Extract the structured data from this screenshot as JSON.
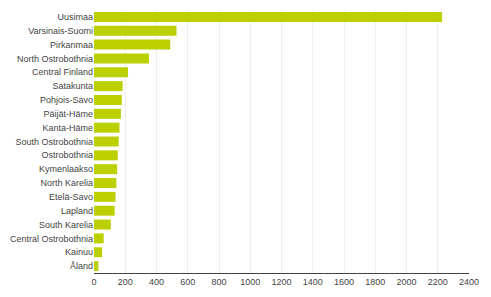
{
  "chart_data": {
    "type": "bar",
    "orientation": "horizontal",
    "categories": [
      "Åland",
      "Kainuu",
      "Central Ostrobothnia",
      "South Karelia",
      "Lapland",
      "Etelä-Savo",
      "North Karelia",
      "Kymenlaakso",
      "Ostrobothnia",
      "South Ostrobothnia",
      "Kanta-Häme",
      "Päijät-Häme",
      "Pohjois-Savo",
      "Satakunta",
      "Central Finland",
      "North Ostrobothnia",
      "Pirkanmaa",
      "Varsinais-Suomi",
      "Uusimaa"
    ],
    "values": [
      28,
      52,
      62,
      108,
      132,
      138,
      143,
      148,
      152,
      158,
      163,
      172,
      178,
      183,
      218,
      352,
      488,
      528,
      2228
    ],
    "color": "#bcd000",
    "xlim": [
      0,
      2400
    ],
    "xticks": [
      0,
      200,
      400,
      600,
      800,
      1000,
      1200,
      1400,
      1600,
      1800,
      2000,
      2200,
      2400
    ],
    "grid": true
  }
}
